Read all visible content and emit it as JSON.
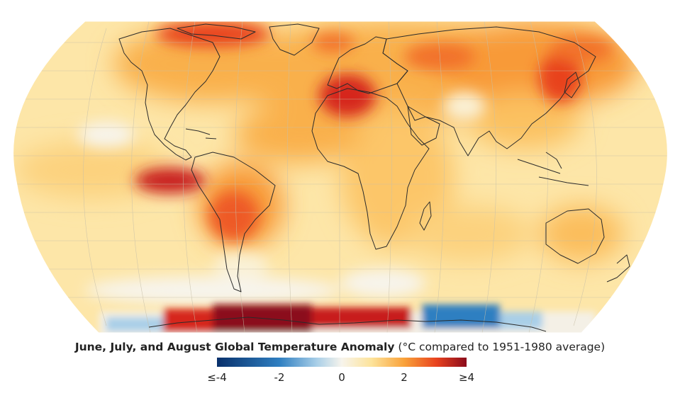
{
  "title": {
    "main": "June, July, and August Global Temperature Anomaly",
    "sub": "(°C compared to 1951-1980 average)"
  },
  "legend": {
    "ticks": [
      {
        "label": "≤-4",
        "value": -4
      },
      {
        "label": "-2",
        "value": -2
      },
      {
        "label": "0",
        "value": 0
      },
      {
        "label": "2",
        "value": 2
      },
      {
        "label": "≥4",
        "value": 4
      }
    ],
    "range": [
      -4,
      4
    ],
    "colors": {
      "neg4": "#08306b",
      "neg2": "#2f7fc1",
      "neg1": "#a9cfe8",
      "zero": "#f7f4ec",
      "pos1": "#fde39a",
      "pos2": "#f9a23a",
      "pos3": "#e8421e",
      "pos4": "#8b0b1c"
    }
  },
  "map": {
    "coastline_color": "#2b2b2b",
    "grid_color": "#c8c0a8"
  }
}
